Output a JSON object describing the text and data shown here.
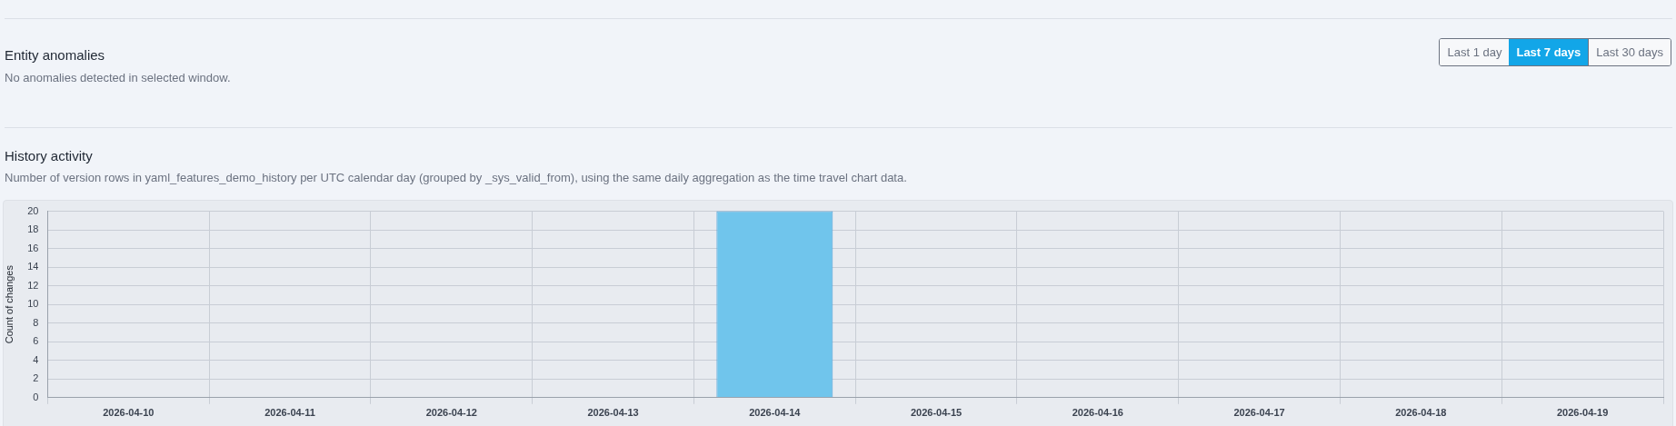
{
  "chart_data": [
    {
      "type": "other",
      "title": "Entity anomalies",
      "annotations": [
        "No anomalies detected in selected window.",
        "Last 1 day",
        "Last 7 days",
        "Last 30 days"
      ]
    },
    {
      "type": "bar",
      "title": "History activity",
      "subtitle": "Number of version rows in yaml_features_demo_history per UTC calendar day (grouped by _sys_valid_from), using the same daily aggregation as the time travel chart data.",
      "ylabel": "Count of changes",
      "categories": [
        "2026-04-10",
        "2026-04-11",
        "2026-04-12",
        "2026-04-13",
        "2026-04-14",
        "2026-04-15",
        "2026-04-16",
        "2026-04-17",
        "2026-04-18",
        "2026-04-19"
      ],
      "values": [
        0,
        0,
        0,
        0,
        20,
        0,
        0,
        0,
        0,
        0
      ],
      "color": "#70c5ec",
      "ylim": [
        0,
        20
      ],
      "yticks": [
        0,
        2,
        4,
        6,
        8,
        10,
        12,
        14,
        16,
        18,
        20
      ],
      "grid": true
    }
  ]
}
